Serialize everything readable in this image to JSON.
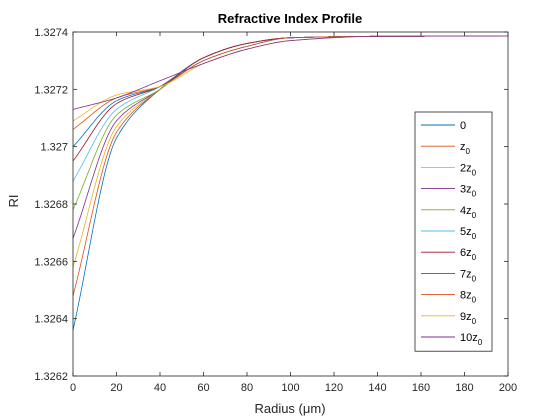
{
  "chart_data": {
    "type": "line",
    "title": "Refractive Index Profile",
    "xlabel": "Radius (μm)",
    "ylabel": "RI",
    "xlim": [
      0,
      200
    ],
    "ylim": [
      1.3262,
      1.3274
    ],
    "x_ticks": [
      0,
      20,
      40,
      60,
      80,
      100,
      120,
      140,
      160,
      180,
      200
    ],
    "y_ticks": [
      1.3262,
      1.3264,
      1.3266,
      1.3268,
      1.327,
      1.3272,
      1.3274
    ],
    "y_tick_labels": [
      "1.3262",
      "1.3264",
      "1.3266",
      "1.3268",
      "1.327",
      "1.3272",
      "1.3274"
    ],
    "grid": false,
    "legend_position": "right",
    "series": [
      {
        "name": "0",
        "legend_main": "0",
        "legend_sub": "",
        "color": "#0072BD",
        "values_at": {
          "0": 1.32636,
          "20": 1.32703,
          "40": 1.3272,
          "60": 1.32731,
          "80": 1.32736,
          "100": 1.32738,
          "140": 1.327385,
          "200": 1.327386
        }
      },
      {
        "name": "z0",
        "legend_main": "z",
        "legend_sub": "0",
        "color": "#D95319",
        "values_at": {
          "0": 1.32648,
          "20": 1.32705,
          "40": 1.3272,
          "60": 1.32731,
          "80": 1.32736,
          "100": 1.32738,
          "140": 1.327385,
          "200": 1.327386
        }
      },
      {
        "name": "2z0",
        "legend_main": "2z",
        "legend_sub": "0",
        "color": "#EDB120",
        "values_at": {
          "0": 1.32658,
          "20": 1.32707,
          "40": 1.3272,
          "60": 1.32731,
          "80": 1.32736,
          "100": 1.32738,
          "140": 1.327385,
          "200": 1.327386
        }
      },
      {
        "name": "3z0",
        "legend_main": "3z",
        "legend_sub": "0",
        "color": "#7E2F8E",
        "values_at": {
          "0": 1.32668,
          "20": 1.32709,
          "40": 1.3272,
          "60": 1.32731,
          "80": 1.32736,
          "100": 1.32738,
          "140": 1.327385,
          "200": 1.327386
        }
      },
      {
        "name": "4z0",
        "legend_main": "4z",
        "legend_sub": "0",
        "color": "#77AC30",
        "values_at": {
          "0": 1.32678,
          "20": 1.32711,
          "40": 1.3272,
          "60": 1.32731,
          "80": 1.32736,
          "100": 1.32738,
          "140": 1.327385,
          "200": 1.327386
        }
      },
      {
        "name": "5z0",
        "legend_main": "5z",
        "legend_sub": "0",
        "color": "#4DBEEE",
        "values_at": {
          "0": 1.32688,
          "20": 1.32713,
          "40": 1.32721,
          "60": 1.32731,
          "80": 1.32736,
          "100": 1.32738,
          "140": 1.327385,
          "200": 1.327386
        }
      },
      {
        "name": "6z0",
        "legend_main": "6z",
        "legend_sub": "0",
        "color": "#A2142F",
        "values_at": {
          "0": 1.32695,
          "20": 1.32715,
          "40": 1.32721,
          "60": 1.32731,
          "80": 1.32736,
          "100": 1.32738,
          "140": 1.327385,
          "200": 1.327386
        }
      },
      {
        "name": "7z0",
        "legend_main": "7z",
        "legend_sub": "0",
        "color": "#0072BD",
        "values_at": {
          "0": 1.327,
          "20": 1.32716,
          "40": 1.32721,
          "60": 1.3273,
          "80": 1.32735,
          "100": 1.32738,
          "140": 1.327385,
          "200": 1.327386
        }
      },
      {
        "name": "8z0",
        "legend_main": "8z",
        "legend_sub": "0",
        "color": "#D95319",
        "values_at": {
          "0": 1.32706,
          "20": 1.32717,
          "40": 1.32721,
          "60": 1.3273,
          "80": 1.32735,
          "100": 1.32738,
          "140": 1.327385,
          "200": 1.327386
        }
      },
      {
        "name": "9z0",
        "legend_main": "9z",
        "legend_sub": "0",
        "color": "#EDB120",
        "values_at": {
          "0": 1.32709,
          "20": 1.32718,
          "40": 1.32721,
          "60": 1.32729,
          "80": 1.32734,
          "100": 1.32737,
          "140": 1.327385,
          "200": 1.327386
        }
      },
      {
        "name": "10z0",
        "legend_main": "10z",
        "legend_sub": "0",
        "color": "#7E2F8E",
        "values_at": {
          "0": 1.32713,
          "20": 1.32717,
          "40": 1.32723,
          "60": 1.32729,
          "80": 1.32734,
          "100": 1.32737,
          "140": 1.327385,
          "200": 1.327386
        }
      }
    ]
  }
}
